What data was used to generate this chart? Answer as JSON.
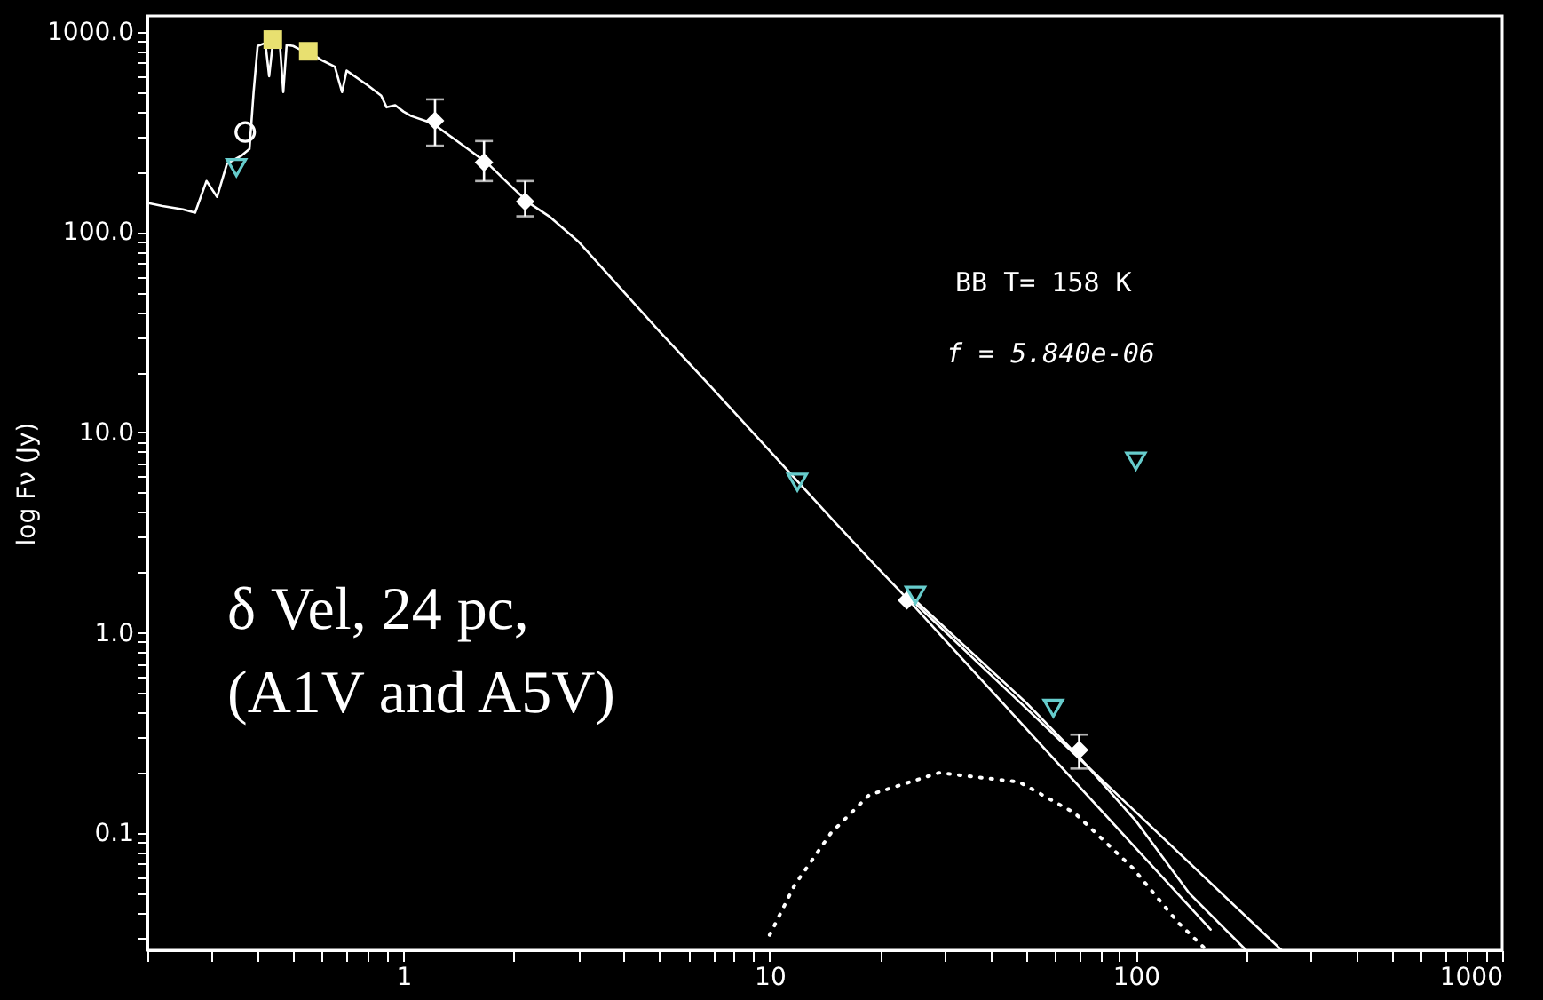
{
  "chart_data": {
    "type": "line",
    "ylabel": "log Fν (Jy)",
    "log": "xy",
    "grid": false,
    "xlim": [
      0.2,
      1000
    ],
    "ylim": [
      0.026,
      1200
    ],
    "xticks": [
      {
        "value": 0.2,
        "label": null
      },
      {
        "value": 0.3,
        "label": null
      },
      {
        "value": 0.4,
        "label": null
      },
      {
        "value": 0.5,
        "label": null
      },
      {
        "value": 0.6,
        "label": null
      },
      {
        "value": 0.7,
        "label": null
      },
      {
        "value": 0.8,
        "label": null
      },
      {
        "value": 0.9,
        "label": null
      },
      1,
      {
        "value": 2,
        "label": null
      },
      {
        "value": 3,
        "label": null
      },
      {
        "value": 4,
        "label": null
      },
      {
        "value": 5,
        "label": null
      },
      {
        "value": 6,
        "label": null
      },
      {
        "value": 7,
        "label": null
      },
      {
        "value": 8,
        "label": null
      },
      {
        "value": 9,
        "label": null
      },
      10,
      {
        "value": 20,
        "label": null
      },
      {
        "value": 30,
        "label": null
      },
      {
        "value": 40,
        "label": null
      },
      {
        "value": 50,
        "label": null
      },
      {
        "value": 60,
        "label": null
      },
      {
        "value": 70,
        "label": null
      },
      {
        "value": 80,
        "label": null
      },
      {
        "value": 90,
        "label": null
      },
      100,
      {
        "value": 200,
        "label": null
      },
      {
        "value": 300,
        "label": null
      },
      {
        "value": 400,
        "label": null
      },
      {
        "value": 500,
        "label": null
      },
      {
        "value": 600,
        "label": null
      },
      {
        "value": 700,
        "label": null
      },
      {
        "value": 800,
        "label": null
      },
      {
        "value": 900,
        "label": null
      },
      1000
    ],
    "yticks": [
      {
        "value": 0.03,
        "label": null
      },
      {
        "value": 0.04,
        "label": null
      },
      {
        "value": 0.05,
        "label": null
      },
      {
        "value": 0.06,
        "label": null
      },
      {
        "value": 0.07,
        "label": null
      },
      {
        "value": 0.08,
        "label": null
      },
      {
        "value": 0.09,
        "label": null
      },
      {
        "value": 0.1,
        "label": "0.1"
      },
      {
        "value": 0.2,
        "label": null
      },
      {
        "value": 0.3,
        "label": null
      },
      {
        "value": 0.4,
        "label": null
      },
      {
        "value": 0.5,
        "label": null
      },
      {
        "value": 0.6,
        "label": null
      },
      {
        "value": 0.7,
        "label": null
      },
      {
        "value": 0.8,
        "label": null
      },
      {
        "value": 0.9,
        "label": null
      },
      {
        "value": 1,
        "label": "1.0"
      },
      {
        "value": 2,
        "label": null
      },
      {
        "value": 3,
        "label": null
      },
      {
        "value": 4,
        "label": null
      },
      {
        "value": 5,
        "label": null
      },
      {
        "value": 6,
        "label": null
      },
      {
        "value": 7,
        "label": null
      },
      {
        "value": 8,
        "label": null
      },
      {
        "value": 9,
        "label": null
      },
      {
        "value": 10,
        "label": "10.0"
      },
      {
        "value": 20,
        "label": null
      },
      {
        "value": 30,
        "label": null
      },
      {
        "value": 40,
        "label": null
      },
      {
        "value": 50,
        "label": null
      },
      {
        "value": 60,
        "label": null
      },
      {
        "value": 70,
        "label": null
      },
      {
        "value": 80,
        "label": null
      },
      {
        "value": 90,
        "label": null
      },
      {
        "value": 100,
        "label": "100.0"
      },
      {
        "value": 200,
        "label": null
      },
      {
        "value": 300,
        "label": null
      },
      {
        "value": 400,
        "label": null
      },
      {
        "value": 500,
        "label": null
      },
      {
        "value": 600,
        "label": null
      },
      {
        "value": 700,
        "label": null
      },
      {
        "value": 800,
        "label": null
      },
      {
        "value": 900,
        "label": null
      },
      {
        "value": 1000,
        "label": "1000.0"
      }
    ],
    "series": [
      {
        "color": "#ffffff",
        "line_style": "solid",
        "x": [
          0.2,
          0.22,
          0.25,
          0.27,
          0.29,
          0.31,
          0.33,
          0.36,
          0.38,
          0.39,
          0.4,
          0.42,
          0.43,
          0.44,
          0.46,
          0.47,
          0.48,
          0.5,
          0.52,
          0.56,
          0.6,
          0.65,
          0.68,
          0.7,
          0.8,
          0.87,
          0.9,
          0.95,
          1.0,
          1.05,
          1.2,
          1.5,
          1.7,
          2.0,
          2.2,
          2.5,
          3,
          5,
          7,
          10,
          15,
          20,
          24,
          50,
          100,
          160
        ],
        "values": [
          140,
          135,
          130,
          125,
          180,
          150,
          220,
          240,
          260,
          500,
          850,
          880,
          600,
          880,
          870,
          500,
          860,
          850,
          820,
          780,
          720,
          670,
          500,
          640,
          540,
          480,
          420,
          430,
          400,
          380,
          350,
          260,
          220,
          165,
          140,
          120,
          90,
          32,
          16.5,
          8.1,
          3.6,
          2.05,
          1.45,
          0.334,
          0.084,
          0.033
        ]
      },
      {
        "color": "#ffffff",
        "line_style": "solid",
        "x": [
          24,
          50,
          70,
          100,
          140,
          200
        ],
        "values": [
          1.55,
          0.45,
          0.24,
          0.115,
          0.05,
          0.026
        ]
      },
      {
        "color": "#ffffff",
        "line_style": "solid",
        "x": [
          24,
          70,
          250
        ],
        "values": [
          1.5,
          0.236,
          0.026
        ]
      },
      {
        "color": "#ffffff",
        "line_style": "dotted",
        "x": [
          10,
          11.7,
          14.7,
          18.7,
          29,
          48,
          68,
          98,
          130,
          156
        ],
        "values": [
          0.031,
          0.055,
          0.1,
          0.155,
          0.2,
          0.18,
          0.126,
          0.067,
          0.036,
          0.026
        ]
      },
      {
        "type": "scatter",
        "color": "#ffffff",
        "marker": "diamond",
        "x": [
          1.22,
          1.66,
          2.15,
          23.7,
          70
        ],
        "values": [
          360,
          223,
          142,
          1.45,
          0.26
        ],
        "errors": [
          [
            270,
            460
          ],
          [
            180,
            285
          ],
          [
            120,
            180
          ],
          null,
          [
            0.21,
            0.31
          ]
        ]
      },
      {
        "type": "scatter",
        "color": "#66cccc",
        "marker": "triangle",
        "x": [
          11.9,
          25,
          59.5,
          100
        ],
        "values": [
          5.65,
          1.54,
          0.42,
          7.2
        ]
      },
      {
        "type": "scatter",
        "color": "#ffffff",
        "marker": "circle",
        "x": [
          0.37
        ],
        "values": [
          316
        ]
      },
      {
        "type": "scatter",
        "color": "#66cccc",
        "marker": "triangle",
        "x": [
          0.35
        ],
        "values": [
          210
        ]
      },
      {
        "type": "scatter",
        "color": "#e8e070",
        "marker": "square",
        "x": [
          0.44,
          0.55
        ],
        "values": [
          915,
          800
        ]
      }
    ],
    "annotations": [
      "BB T= 158 K",
      "f =  5.840e-06",
      "δ Vel,  24 pc,",
      "(A1V and A5V)"
    ]
  }
}
